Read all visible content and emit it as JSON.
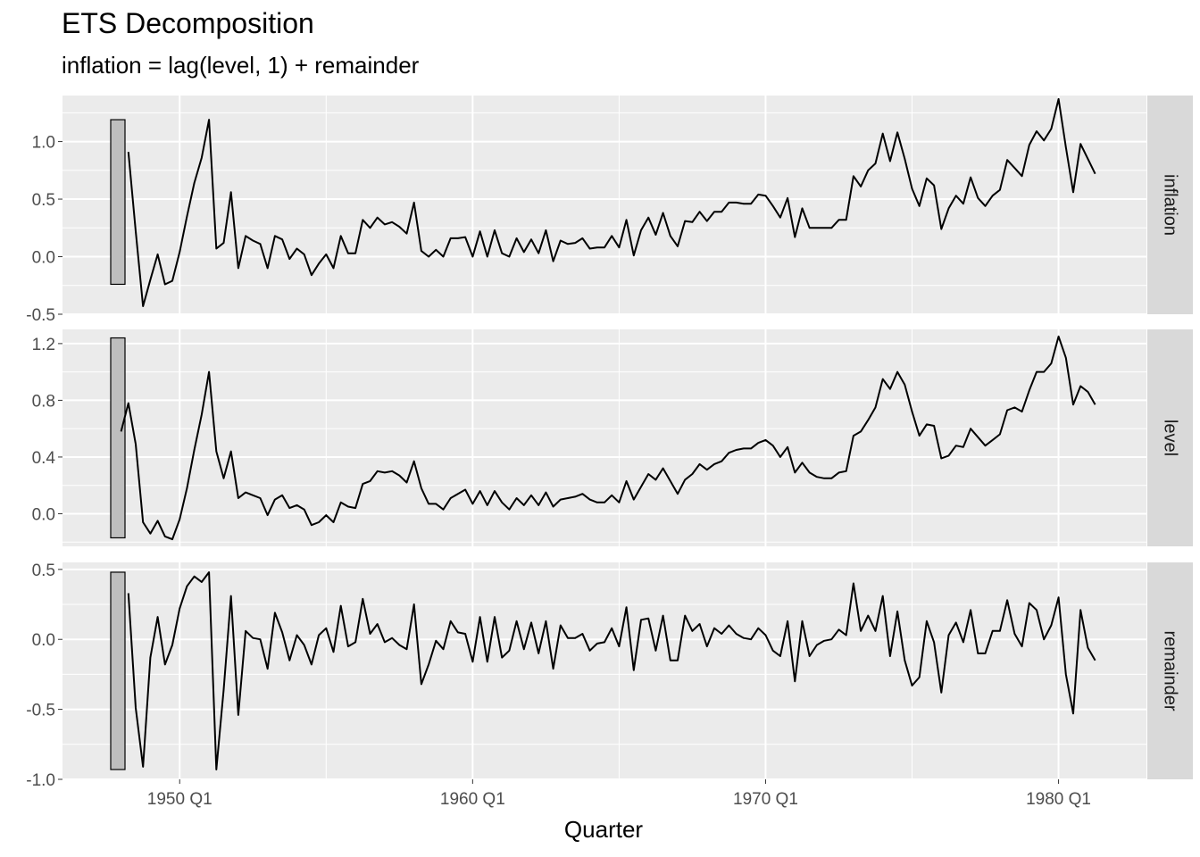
{
  "chart_data": {
    "type": "line",
    "title": "ETS Decomposition",
    "subtitle": "inflation = lag(level, 1) + remainder",
    "xlabel": "Quarter",
    "x_ticks": [
      "1950 Q1",
      "1960 Q1",
      "1970 Q1",
      "1980 Q1"
    ],
    "x_start": 1948.25,
    "x_step": 0.25,
    "grid": true,
    "panels": [
      {
        "name": "inflation",
        "ylim": [
          -0.5,
          1.4
        ],
        "y_ticks": [
          "-0.5",
          "0.0",
          "0.5",
          "1.0"
        ],
        "scale_bar": [
          -0.24,
          1.19
        ],
        "values": [
          0.91,
          0.22,
          -0.43,
          -0.2,
          0.02,
          -0.24,
          -0.21,
          0.04,
          0.35,
          0.64,
          0.86,
          1.19,
          0.07,
          0.12,
          0.56,
          -0.1,
          0.18,
          0.14,
          0.11,
          -0.1,
          0.18,
          0.15,
          -0.02,
          0.07,
          0.02,
          -0.16,
          -0.06,
          0.02,
          -0.1,
          0.18,
          0.03,
          0.03,
          0.32,
          0.25,
          0.34,
          0.28,
          0.3,
          0.26,
          0.2,
          0.47,
          0.05,
          0.0,
          0.06,
          0.0,
          0.16,
          0.16,
          0.17,
          0.0,
          0.22,
          0.0,
          0.23,
          0.03,
          0.0,
          0.16,
          0.04,
          0.15,
          0.03,
          0.23,
          -0.04,
          0.14,
          0.11,
          0.12,
          0.16,
          0.07,
          0.08,
          0.08,
          0.18,
          0.08,
          0.32,
          0.01,
          0.23,
          0.34,
          0.19,
          0.38,
          0.18,
          0.09,
          0.31,
          0.3,
          0.39,
          0.31,
          0.39,
          0.39,
          0.47,
          0.47,
          0.46,
          0.46,
          0.54,
          0.53,
          0.44,
          0.34,
          0.51,
          0.17,
          0.42,
          0.25,
          0.25,
          0.25,
          0.25,
          0.32,
          0.32,
          0.7,
          0.61,
          0.75,
          0.81,
          1.07,
          0.83,
          1.08,
          0.85,
          0.59,
          0.44,
          0.68,
          0.62,
          0.24,
          0.42,
          0.53,
          0.46,
          0.69,
          0.51,
          0.44,
          0.53,
          0.58,
          0.84,
          0.77,
          0.7,
          0.97,
          1.09,
          1.01,
          1.11,
          1.37,
          0.95,
          0.56,
          0.98,
          0.85,
          0.72
        ]
      },
      {
        "name": "level",
        "ylim": [
          -0.23,
          1.3
        ],
        "y_ticks": [
          "0.0",
          "0.4",
          "0.8",
          "1.2"
        ],
        "scale_bar": [
          -0.17,
          1.24
        ],
        "start_offset": -1,
        "values": [
          0.58,
          0.78,
          0.49,
          -0.06,
          -0.14,
          -0.05,
          -0.16,
          -0.18,
          -0.04,
          0.18,
          0.45,
          0.7,
          1.0,
          0.44,
          0.25,
          0.44,
          0.11,
          0.15,
          0.13,
          0.11,
          -0.01,
          0.1,
          0.13,
          0.04,
          0.06,
          0.03,
          -0.08,
          -0.06,
          -0.01,
          -0.06,
          0.08,
          0.05,
          0.04,
          0.21,
          0.23,
          0.3,
          0.29,
          0.3,
          0.27,
          0.22,
          0.37,
          0.18,
          0.07,
          0.07,
          0.03,
          0.11,
          0.14,
          0.17,
          0.07,
          0.16,
          0.06,
          0.16,
          0.08,
          0.03,
          0.11,
          0.06,
          0.13,
          0.06,
          0.15,
          0.05,
          0.1,
          0.11,
          0.12,
          0.14,
          0.1,
          0.08,
          0.08,
          0.13,
          0.08,
          0.23,
          0.1,
          0.19,
          0.28,
          0.24,
          0.32,
          0.23,
          0.14,
          0.24,
          0.28,
          0.35,
          0.31,
          0.35,
          0.37,
          0.43,
          0.45,
          0.46,
          0.46,
          0.5,
          0.52,
          0.48,
          0.4,
          0.47,
          0.29,
          0.36,
          0.29,
          0.26,
          0.25,
          0.25,
          0.29,
          0.3,
          0.55,
          0.58,
          0.66,
          0.75,
          0.95,
          0.88,
          1.0,
          0.91,
          0.72,
          0.55,
          0.63,
          0.62,
          0.39,
          0.41,
          0.48,
          0.47,
          0.6,
          0.54,
          0.48,
          0.52,
          0.56,
          0.73,
          0.75,
          0.72,
          0.87,
          1.0,
          1.0,
          1.06,
          1.25,
          1.1,
          0.77,
          0.9,
          0.86,
          0.77
        ]
      },
      {
        "name": "remainder",
        "ylim": [
          -1.0,
          0.55
        ],
        "y_ticks": [
          "-1.0",
          "-0.5",
          "0.0",
          "0.5"
        ],
        "scale_bar": [
          -0.93,
          0.48
        ],
        "values": [
          0.33,
          -0.49,
          -0.91,
          -0.13,
          0.16,
          -0.18,
          -0.04,
          0.22,
          0.38,
          0.45,
          0.41,
          0.48,
          -0.93,
          -0.36,
          0.31,
          -0.54,
          0.06,
          0.01,
          0.0,
          -0.21,
          0.19,
          0.05,
          -0.15,
          0.03,
          -0.04,
          -0.18,
          0.03,
          0.08,
          -0.09,
          0.24,
          -0.05,
          -0.02,
          0.29,
          0.04,
          0.11,
          -0.02,
          0.01,
          -0.04,
          -0.07,
          0.25,
          -0.32,
          -0.18,
          -0.01,
          -0.07,
          0.13,
          0.05,
          0.04,
          -0.16,
          0.16,
          -0.16,
          0.16,
          -0.13,
          -0.08,
          0.13,
          -0.07,
          0.12,
          -0.1,
          0.13,
          -0.21,
          0.1,
          0.01,
          0.01,
          0.04,
          -0.08,
          -0.03,
          -0.02,
          0.08,
          -0.05,
          0.23,
          -0.22,
          0.14,
          0.15,
          -0.08,
          0.17,
          -0.15,
          -0.15,
          0.17,
          0.06,
          0.11,
          -0.05,
          0.08,
          0.04,
          0.1,
          0.04,
          0.01,
          0.0,
          0.08,
          0.03,
          -0.08,
          -0.12,
          0.13,
          -0.3,
          0.13,
          -0.12,
          -0.04,
          -0.01,
          0.0,
          0.07,
          0.03,
          0.4,
          0.06,
          0.17,
          0.06,
          0.31,
          -0.12,
          0.2,
          -0.15,
          -0.33,
          -0.27,
          0.13,
          -0.02,
          -0.38,
          0.03,
          0.12,
          -0.02,
          0.21,
          -0.1,
          -0.1,
          0.06,
          0.06,
          0.28,
          0.04,
          -0.05,
          0.26,
          0.21,
          0.0,
          0.1,
          0.3,
          -0.25,
          -0.53,
          0.21,
          -0.06,
          -0.15
        ]
      }
    ]
  }
}
